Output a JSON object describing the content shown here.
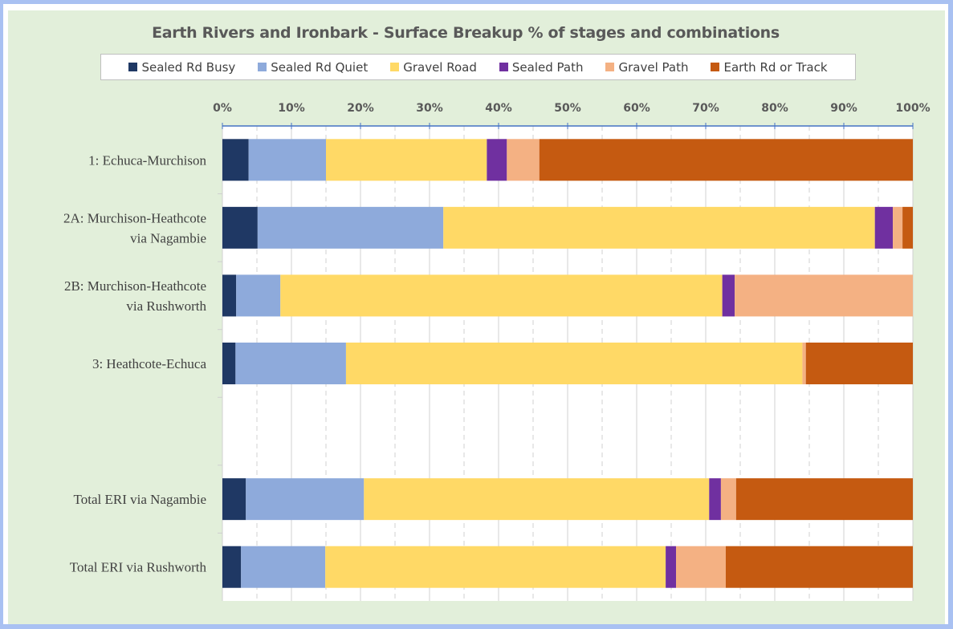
{
  "chart_data": {
    "type": "bar",
    "orientation": "horizontal",
    "stacked": "percent",
    "title": "Earth Rivers and Ironbark - Surface Breakup % of stages and combinations",
    "xlabel": "",
    "ylabel": "",
    "xlim": [
      0,
      100
    ],
    "x_ticks": [
      "0%",
      "10%",
      "20%",
      "30%",
      "40%",
      "50%",
      "60%",
      "70%",
      "80%",
      "90%",
      "100%"
    ],
    "x_axis_position": "top",
    "grid": true,
    "legend_position": "top",
    "categories": [
      "1: Echuca-Murchison",
      "2A: Murchison-Heathcote via Nagambie",
      "2B: Murchison-Heathcote via Rushworth",
      "3: Heathcote-Echuca",
      "",
      "Total ERI via Nagambie",
      "Total ERI via Rushworth"
    ],
    "category_lines": [
      [
        "1: Echuca-Murchison"
      ],
      [
        "2A: Murchison-Heathcote",
        "via Nagambie"
      ],
      [
        "2B: Murchison-Heathcote",
        "via Rushworth"
      ],
      [
        "3: Heathcote-Echuca"
      ],
      [],
      [
        "Total ERI via Nagambie"
      ],
      [
        "Total ERI via Rushworth"
      ]
    ],
    "series": [
      {
        "name": "Sealed Rd Busy",
        "color": "#1f3864",
        "values": [
          3.8,
          5.1,
          2.0,
          1.9,
          null,
          3.4,
          2.7
        ]
      },
      {
        "name": "Sealed Rd Quiet",
        "color": "#8eaadb",
        "values": [
          11.2,
          26.9,
          6.4,
          16.0,
          null,
          17.1,
          12.2
        ]
      },
      {
        "name": "Gravel Road",
        "color": "#ffd966",
        "values": [
          23.3,
          62.5,
          64.0,
          66.1,
          null,
          50.0,
          49.3
        ]
      },
      {
        "name": "Sealed Path",
        "color": "#7030a0",
        "values": [
          2.9,
          2.6,
          1.8,
          0,
          null,
          1.7,
          1.5
        ]
      },
      {
        "name": "Gravel Path",
        "color": "#f4b183",
        "values": [
          4.7,
          1.4,
          25.8,
          0.5,
          null,
          2.2,
          7.2
        ]
      },
      {
        "name": "Earth Rd or Track",
        "color": "#c55a11",
        "values": [
          54.1,
          1.5,
          0,
          15.5,
          null,
          25.6,
          27.1
        ]
      }
    ]
  }
}
